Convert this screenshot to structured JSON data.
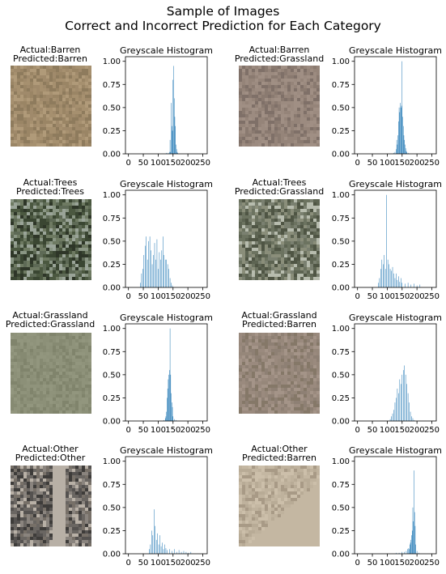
{
  "figure": {
    "suptitle_line1": "Sample of Images",
    "suptitle_line2": "Correct and Incorrect Prediction for Each Category"
  },
  "colors": {
    "bar": "#1f77b4"
  },
  "panels": [
    {
      "id": "p1",
      "actual": "Actual:Barren",
      "predicted": "Predicted:Barren",
      "palette": [
        "#a6906f",
        "#9a8565",
        "#b09a79",
        "#8e7b5d",
        "#a08a6b"
      ]
    },
    {
      "id": "p2",
      "actual": "Actual:Barren",
      "predicted": "Predicted:Grassland",
      "palette": [
        "#958479",
        "#8a7a70",
        "#a08f84",
        "#7f7068",
        "#9c8b80"
      ]
    },
    {
      "id": "p3",
      "actual": "Actual:Trees",
      "predicted": "Predicted:Trees",
      "palette": [
        "#4b5840",
        "#6e7a62",
        "#3a4632",
        "#8a9684",
        "#2e3628",
        "#5e6a56",
        "#9aa498"
      ]
    },
    {
      "id": "p4",
      "actual": "Actual:Trees",
      "predicted": "Predicted:Grassland",
      "palette": [
        "#5d6452",
        "#6c7360",
        "#8a8e7a",
        "#b7bcae",
        "#4f5544",
        "#7a8070"
      ]
    },
    {
      "id": "p5",
      "actual": "Actual:Grassland",
      "predicted": "Predicted:Grassland",
      "palette": [
        "#8c9078",
        "#868a72",
        "#92967e",
        "#80846c",
        "#8f937b"
      ]
    },
    {
      "id": "p6",
      "actual": "Actual:Grassland",
      "predicted": "Predicted:Barren",
      "palette": [
        "#9a8a7e",
        "#8e8074",
        "#a49488",
        "#857868",
        "#96877a"
      ]
    },
    {
      "id": "p7",
      "actual": "Actual:Other",
      "predicted": "Predicted:Other",
      "palette": [
        "#555250",
        "#6a6662",
        "#8a847e",
        "#3e3c3a",
        "#b8b0a6",
        "#777068"
      ]
    },
    {
      "id": "p8",
      "actual": "Actual:Other",
      "predicted": "Predicted:Barren",
      "palette": [
        "#c4b7a2",
        "#b8ab96",
        "#ccbfaa",
        "#a89a86",
        "#bfb29d"
      ]
    }
  ],
  "chart_data": [
    {
      "type": "bar",
      "panel": "p1",
      "title": "Greyscale Histogram",
      "x_ticks": [
        "0",
        "50",
        "100",
        "150",
        "200",
        "250"
      ],
      "y_ticks": [
        "0.00",
        "0.25",
        "0.50",
        "0.75",
        "1.00"
      ],
      "xlim": [
        -10,
        265
      ],
      "ylim": [
        0,
        1.05
      ],
      "x": [
        128,
        134,
        138,
        140,
        142,
        144,
        146,
        148,
        150,
        152,
        154,
        156,
        158,
        160,
        162,
        164,
        166
      ],
      "values": [
        0.01,
        0.01,
        0.02,
        0.15,
        0.02,
        0.55,
        0.3,
        0.25,
        0.8,
        0.95,
        0.6,
        0.4,
        0.3,
        0.1,
        0.05,
        0.02,
        0.01
      ]
    },
    {
      "type": "bar",
      "panel": "p2",
      "title": "Greyscale Histogram",
      "x_ticks": [
        "0",
        "50",
        "100",
        "150",
        "200",
        "250"
      ],
      "y_ticks": [
        "0.00",
        "0.25",
        "0.50",
        "0.75",
        "1.00"
      ],
      "xlim": [
        -10,
        265
      ],
      "ylim": [
        0,
        1.05
      ],
      "x": [
        122,
        126,
        130,
        132,
        134,
        136,
        138,
        140,
        142,
        144,
        146,
        148,
        150,
        152,
        154,
        156,
        158,
        160,
        162,
        164,
        166,
        170
      ],
      "values": [
        0.01,
        0.02,
        0.05,
        0.15,
        0.1,
        0.2,
        0.35,
        0.5,
        0.45,
        0.55,
        0.5,
        0.52,
        1.0,
        0.4,
        0.3,
        0.2,
        0.15,
        0.1,
        0.06,
        0.03,
        0.02,
        0.01
      ]
    },
    {
      "type": "bar",
      "panel": "p3",
      "title": "Greyscale Histogram",
      "x_ticks": [
        "0",
        "50",
        "100",
        "150",
        "200",
        "250"
      ],
      "y_ticks": [
        "0.00",
        "0.25",
        "0.50",
        "0.75",
        "1.00"
      ],
      "xlim": [
        -10,
        265
      ],
      "ylim": [
        0,
        1.05
      ],
      "x": [
        40,
        44,
        48,
        52,
        56,
        60,
        64,
        68,
        72,
        76,
        80,
        84,
        88,
        92,
        96,
        100,
        104,
        108,
        112,
        116,
        120,
        124,
        128,
        132,
        136,
        140,
        144,
        148
      ],
      "values": [
        0.05,
        0.15,
        0.2,
        0.35,
        0.45,
        0.55,
        0.3,
        0.5,
        0.55,
        0.4,
        0.25,
        0.35,
        0.48,
        0.3,
        0.52,
        0.2,
        0.38,
        0.3,
        0.4,
        0.55,
        0.35,
        0.3,
        0.3,
        0.25,
        0.2,
        0.1,
        0.05,
        0.02
      ]
    },
    {
      "type": "bar",
      "panel": "p4",
      "title": "Greyscale Histogram",
      "x_ticks": [
        "0",
        "50",
        "100",
        "150",
        "200",
        "250"
      ],
      "y_ticks": [
        "0.00",
        "0.25",
        "0.50",
        "0.75",
        "1.00"
      ],
      "xlim": [
        -10,
        265
      ],
      "ylim": [
        0,
        1.05
      ],
      "x": [
        70,
        74,
        78,
        82,
        86,
        90,
        94,
        98,
        102,
        106,
        110,
        114,
        118,
        122,
        126,
        130,
        134,
        138,
        142,
        146,
        150,
        160,
        170,
        180,
        190,
        200,
        210
      ],
      "values": [
        0.05,
        0.1,
        0.2,
        0.3,
        0.25,
        0.35,
        0.2,
        1.0,
        0.3,
        0.25,
        0.2,
        0.18,
        0.22,
        0.15,
        0.1,
        0.15,
        0.08,
        0.12,
        0.06,
        0.1,
        0.05,
        0.04,
        0.05,
        0.03,
        0.04,
        0.02,
        0.03
      ]
    },
    {
      "type": "bar",
      "panel": "p5",
      "title": "Greyscale Histogram",
      "x_ticks": [
        "0",
        "50",
        "100",
        "150",
        "200",
        "250"
      ],
      "y_ticks": [
        "0.00",
        "0.25",
        "0.50",
        "0.75",
        "1.00"
      ],
      "xlim": [
        -10,
        265
      ],
      "ylim": [
        0,
        1.05
      ],
      "x": [
        120,
        124,
        126,
        128,
        130,
        132,
        134,
        136,
        138,
        140,
        142,
        144,
        146,
        148,
        150,
        154,
        160
      ],
      "values": [
        0.01,
        0.03,
        0.05,
        0.1,
        0.25,
        0.35,
        0.45,
        0.5,
        0.55,
        1.0,
        0.5,
        0.3,
        0.2,
        0.15,
        0.05,
        0.02,
        0.01
      ]
    },
    {
      "type": "bar",
      "panel": "p6",
      "title": "Greyscale Histogram",
      "x_ticks": [
        "0",
        "50",
        "100",
        "150",
        "200",
        "250"
      ],
      "y_ticks": [
        "0.00",
        "0.25",
        "0.50",
        "0.75",
        "1.00"
      ],
      "xlim": [
        -10,
        265
      ],
      "ylim": [
        0,
        1.05
      ],
      "x": [
        110,
        114,
        118,
        122,
        126,
        130,
        134,
        138,
        142,
        146,
        150,
        154,
        158,
        162,
        166,
        170,
        174,
        178,
        182,
        186,
        190
      ],
      "values": [
        0.02,
        0.05,
        0.08,
        0.12,
        0.2,
        0.25,
        0.35,
        0.3,
        0.45,
        0.4,
        0.5,
        0.55,
        0.6,
        0.5,
        0.4,
        0.3,
        0.2,
        0.1,
        0.05,
        0.03,
        0.01
      ]
    },
    {
      "type": "bar",
      "panel": "p7",
      "title": "Greyscale Histogram",
      "x_ticks": [
        "0",
        "50",
        "100",
        "150",
        "200",
        "250"
      ],
      "y_ticks": [
        "0.00",
        "0.25",
        "0.50",
        "0.75",
        "1.00"
      ],
      "xlim": [
        -10,
        265
      ],
      "ylim": [
        0,
        1.05
      ],
      "x": [
        70,
        74,
        78,
        82,
        86,
        90,
        94,
        98,
        102,
        106,
        110,
        114,
        118,
        122,
        126,
        130,
        138,
        146,
        154,
        162,
        170,
        178,
        186,
        194,
        202,
        210
      ],
      "values": [
        0.05,
        0.1,
        0.25,
        0.2,
        0.48,
        0.3,
        0.15,
        0.22,
        0.1,
        0.2,
        0.08,
        0.12,
        0.05,
        0.1,
        0.06,
        0.04,
        0.05,
        0.03,
        0.05,
        0.02,
        0.04,
        0.02,
        0.03,
        0.02,
        0.01,
        0.02
      ]
    },
    {
      "type": "bar",
      "panel": "p8",
      "title": "Greyscale Histogram",
      "x_ticks": [
        "0",
        "50",
        "100",
        "150",
        "200",
        "250"
      ],
      "y_ticks": [
        "0.00",
        "0.25",
        "0.50",
        "0.75",
        "1.00"
      ],
      "xlim": [
        -10,
        265
      ],
      "ylim": [
        0,
        1.05
      ],
      "x": [
        130,
        140,
        150,
        158,
        164,
        168,
        172,
        174,
        176,
        178,
        180,
        182,
        184,
        186,
        188,
        190,
        192,
        194,
        196,
        200,
        206
      ],
      "values": [
        0.01,
        0.01,
        0.02,
        0.02,
        0.03,
        0.05,
        0.06,
        0.05,
        0.1,
        0.12,
        0.15,
        0.2,
        0.25,
        0.5,
        0.35,
        0.9,
        0.45,
        0.3,
        0.1,
        0.03,
        0.01
      ]
    }
  ]
}
